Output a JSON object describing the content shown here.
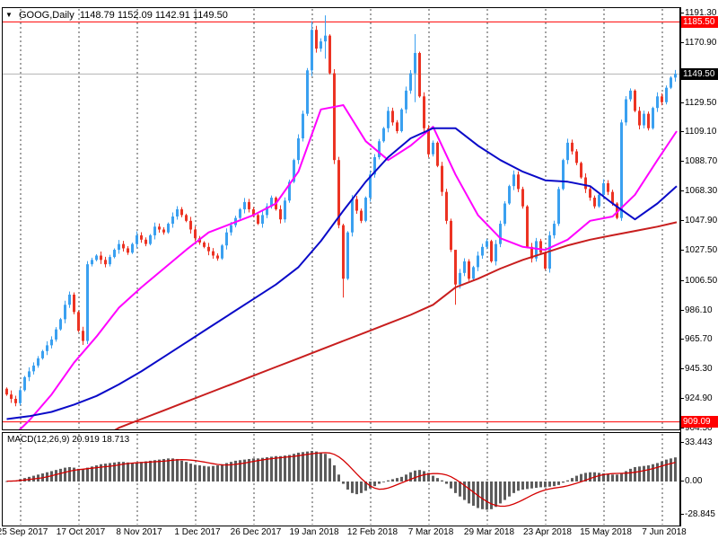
{
  "window": {
    "background": "#ffffff"
  },
  "quote_bar": {
    "symbol_label": "GOOG,Daily",
    "open": "1148.79",
    "high": "1152.09",
    "low": "1142.91",
    "close": "1149.50"
  },
  "macd_bar": {
    "label": "MACD(12,26,9)",
    "macd_value": "20.919",
    "signal_value": "18.713"
  },
  "chart_data": [
    {
      "type": "candlestick",
      "title": "GOOG,Daily",
      "symbol": "GOOG",
      "timeframe": "Daily",
      "legend_position": "top-left",
      "grid": "vertical-dashed",
      "x_labels": [
        "25 Sep 2017",
        "17 Oct 2017",
        "8 Nov 2017",
        "1 Dec 2017",
        "26 Dec 2017",
        "19 Jan 2018",
        "12 Feb 2018",
        "7 Mar 2018",
        "29 Mar 2018",
        "23 Apr 2018",
        "15 May 2018",
        "7 Jun 2018"
      ],
      "y_ticks": [
        1191.3,
        1170.9,
        1129.5,
        1109.1,
        1088.7,
        1068.3,
        1047.9,
        1027.5,
        1006.5,
        986.1,
        965.7,
        945.3,
        924.9,
        904.5
      ],
      "ylim": [
        902.0,
        1195.5
      ],
      "price_markers": [
        {
          "value": 1185.5,
          "label": "1185.50",
          "bg": "#ff0000",
          "line_color": "#ff0000",
          "type": "horizontal-line"
        },
        {
          "value": 1149.5,
          "label": "1149.50",
          "bg": "#000000",
          "line_color": "#b3b3b3",
          "type": "current-price"
        },
        {
          "value": 909.09,
          "label": "909.09",
          "bg": "#ff0000",
          "line_color": "#ff0000",
          "type": "horizontal-line"
        }
      ],
      "open_first": 932,
      "closes": [
        928,
        925,
        922,
        931,
        940,
        944,
        948,
        953,
        958,
        962,
        966,
        973,
        980,
        990,
        997,
        985,
        972,
        965,
        1018,
        1021,
        1024,
        1021,
        1018,
        1023,
        1028,
        1032,
        1029,
        1026,
        1032,
        1038,
        1035,
        1032,
        1038,
        1044,
        1042,
        1040,
        1046,
        1051,
        1056,
        1052,
        1048,
        1042,
        1036,
        1033,
        1030,
        1027,
        1024,
        1022,
        1031,
        1040,
        1045,
        1050,
        1056,
        1061,
        1056,
        1052,
        1046,
        1052,
        1058,
        1064,
        1056,
        1049,
        1062,
        1075,
        1090,
        1105,
        1122,
        1152,
        1180,
        1167,
        1172,
        1176,
        1150,
        1090,
        1045,
        1008,
        1040,
        1063,
        1055,
        1048,
        1064,
        1080,
        1092,
        1103,
        1112,
        1124,
        1116,
        1110,
        1125,
        1138,
        1150,
        1164,
        1134,
        1112,
        1094,
        1102,
        1086,
        1068,
        1048,
        1028,
        1004,
        1012,
        1020,
        1008,
        1016,
        1024,
        1030,
        1034,
        1020,
        1032,
        1046,
        1060,
        1072,
        1080,
        1070,
        1058,
        1030,
        1022,
        1034,
        1026,
        1015,
        1038,
        1046,
        1070,
        1090,
        1102,
        1096,
        1088,
        1078,
        1070,
        1064,
        1058,
        1066,
        1074,
        1068,
        1060,
        1050,
        1116,
        1132,
        1138,
        1124,
        1114,
        1122,
        1112,
        1126,
        1134,
        1130,
        1140,
        1147,
        1149.5
      ],
      "wick_overrides": {
        "68": [
          1186,
          1148
        ],
        "71": [
          1190,
          1160
        ],
        "75": [
          1046,
          995
        ],
        "91": [
          1177,
          1130
        ],
        "100": [
          1016,
          990
        ],
        "137": [
          1118,
          1048
        ]
      },
      "ma_lines": [
        {
          "name": "ma-fast",
          "color": "#ff00ff",
          "width": 2,
          "sample_step": 5,
          "values": [
            895,
            910,
            928,
            950,
            968,
            988,
            1002,
            1015,
            1028,
            1040,
            1046,
            1052,
            1060,
            1082,
            1125,
            1128,
            1103,
            1090,
            1100,
            1113,
            1080,
            1052,
            1036,
            1030,
            1028,
            1035,
            1048,
            1051,
            1066,
            1090,
            1110
          ]
        },
        {
          "name": "ma-mid",
          "color": "#0a0ac8",
          "width": 2,
          "sample_step": 5,
          "values": [
            911,
            913,
            916,
            921,
            927,
            935,
            944,
            954,
            964,
            974,
            984,
            994,
            1004,
            1016,
            1034,
            1055,
            1075,
            1092,
            1105,
            1112,
            1112,
            1100,
            1090,
            1082,
            1076,
            1075,
            1072,
            1060,
            1049,
            1060,
            1072
          ]
        },
        {
          "name": "ma-slow",
          "color": "#c81e1e",
          "width": 2,
          "sample_step": 5,
          "values": [
            882,
            885,
            888,
            892,
            896,
            905,
            911,
            917,
            923,
            929,
            935,
            941,
            947,
            953,
            959,
            965,
            971,
            977,
            983,
            990,
            1002,
            1008,
            1015,
            1021,
            1026,
            1031,
            1035,
            1038,
            1041,
            1044,
            1047
          ]
        }
      ],
      "colors": {
        "up": "#3aa0f0",
        "down": "#ec3323",
        "grid": "#4a4a4a"
      },
      "y_anchor": {
        "p1": 1191.3,
        "y1": 15,
        "p2": 904.5,
        "y2": 477
      }
    },
    {
      "type": "bar",
      "title": "MACD(12,26,9)",
      "y_ticks": [
        33.443,
        0.0,
        -28.845
      ],
      "ylim": [
        -33,
        38
      ],
      "values": [
        0.3,
        0.5,
        0.8,
        2,
        3,
        4,
        5,
        6,
        7,
        8,
        9,
        10,
        11,
        12,
        12.5,
        12,
        11,
        10.5,
        12,
        13,
        14,
        15,
        15.5,
        16,
        16.5,
        17,
        17,
        16.5,
        16,
        16.5,
        17,
        17.5,
        18,
        18.5,
        19,
        19.5,
        20,
        20,
        19.5,
        18,
        17,
        15.5,
        14.5,
        14,
        13.5,
        13,
        13.5,
        14,
        15,
        16,
        17,
        18,
        18.5,
        19,
        19.5,
        20,
        20,
        20.5,
        21,
        21.5,
        22,
        22,
        22.5,
        23,
        24,
        25,
        25.5,
        26,
        26.5,
        26,
        25,
        24,
        20,
        14,
        6,
        -2,
        -7,
        -10,
        -11,
        -10,
        -8,
        -6,
        -4,
        -2,
        -0.5,
        1,
        2,
        3,
        4,
        6,
        8,
        9.5,
        10,
        9,
        7.5,
        5,
        3,
        1,
        -2,
        -6,
        -10,
        -13,
        -16,
        -19,
        -21,
        -23,
        -24,
        -24.5,
        -24,
        -22,
        -19,
        -16,
        -13,
        -10,
        -8,
        -7,
        -6.5,
        -6,
        -5.5,
        -5,
        -5,
        -4.5,
        -4,
        -3,
        -1,
        1,
        3,
        5,
        6.5,
        7.5,
        8,
        8,
        7.5,
        7,
        6.5,
        6,
        6,
        7,
        9,
        11,
        12.5,
        13,
        13.5,
        14,
        15,
        16,
        17.5,
        19,
        20,
        20.9
      ],
      "signal_period": 9,
      "colors": {
        "hist": "#5c5c5c",
        "signal": "#d40000"
      }
    }
  ]
}
